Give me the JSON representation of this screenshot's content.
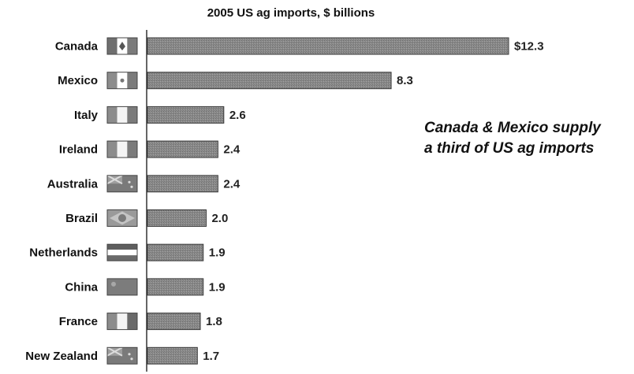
{
  "chart_data": {
    "type": "bar",
    "orientation": "horizontal",
    "title": "2005 US ag imports, $ billions",
    "categories": [
      "Canada",
      "Mexico",
      "Italy",
      "Ireland",
      "Australia",
      "Brazil",
      "Netherlands",
      "China",
      "France",
      "New Zealand"
    ],
    "values": [
      12.3,
      8.3,
      2.6,
      2.4,
      2.4,
      2.0,
      1.9,
      1.9,
      1.8,
      1.7
    ],
    "value_labels": [
      "$12.3",
      "8.3",
      "2.6",
      "2.4",
      "2.4",
      "2.0",
      "1.9",
      "1.9",
      "1.8",
      "1.7"
    ],
    "flag_icons": [
      "canada-flag-icon",
      "mexico-flag-icon",
      "italy-flag-icon",
      "ireland-flag-icon",
      "australia-flag-icon",
      "brazil-flag-icon",
      "netherlands-flag-icon",
      "china-flag-icon",
      "france-flag-icon",
      "new-zealand-flag-icon"
    ],
    "annotation": [
      "Canada & Mexico supply",
      "a third of US ag imports"
    ],
    "xlim": [
      0,
      12.3
    ],
    "grid": false,
    "legend": "none",
    "colors": {
      "bar": "#858585",
      "bar_edge": "#3a3a3a",
      "axis": "#333333"
    }
  }
}
